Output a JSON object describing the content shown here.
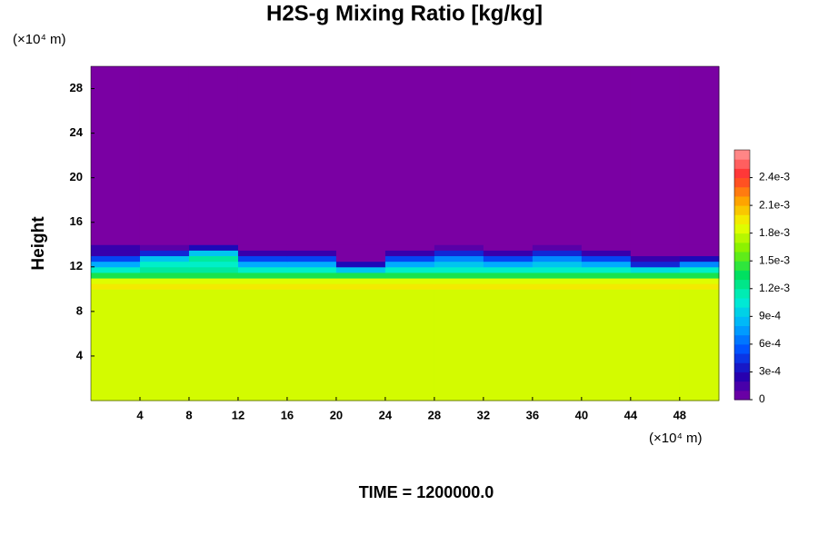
{
  "chart_data": {
    "type": "contour",
    "title": "H2S-g Mixing Ratio [kg/kg]",
    "y_label": "Height",
    "y_unit": "(×10⁴ m)",
    "x_unit": "(×10⁴ m)",
    "footer": "TIME = 1200000.0",
    "xlim": [
      0,
      51.2
    ],
    "ylim": [
      0,
      30
    ],
    "xticks": [
      4,
      8,
      12,
      16,
      20,
      24,
      28,
      32,
      36,
      40,
      44,
      48
    ],
    "yticks": [
      4,
      8,
      12,
      16,
      20,
      24,
      28
    ],
    "x_edges": [
      0,
      4,
      8,
      12,
      16,
      20,
      24,
      28,
      32,
      36,
      40,
      44,
      48,
      51.2
    ],
    "y_edges": [
      0,
      10,
      10.5,
      11,
      11.5,
      12,
      12.5,
      13,
      13.5,
      14,
      30
    ],
    "z": [
      [
        0.00182,
        0.00182,
        0.00182,
        0.00182,
        0.00182,
        0.00182,
        0.00182,
        0.00182,
        0.00182,
        0.00182,
        0.00182,
        0.00182,
        0.00182
      ],
      [
        0.00195,
        0.00195,
        0.00195,
        0.00195,
        0.00195,
        0.00195,
        0.00195,
        0.00195,
        0.00195,
        0.00195,
        0.00195,
        0.00195,
        0.00195
      ],
      [
        0.00185,
        0.00185,
        0.00185,
        0.00185,
        0.00185,
        0.00185,
        0.00185,
        0.00185,
        0.00185,
        0.00185,
        0.00185,
        0.00185,
        0.00185
      ],
      [
        0.0014,
        0.0014,
        0.0014,
        0.0014,
        0.0014,
        0.0014,
        0.0014,
        0.0014,
        0.0014,
        0.0014,
        0.0014,
        0.0014,
        0.0014
      ],
      [
        0.0011,
        0.0012,
        0.0012,
        0.0011,
        0.0011,
        0.0009,
        0.0011,
        0.0011,
        0.0011,
        0.0011,
        0.0011,
        0.001,
        0.0011
      ],
      [
        0.0008,
        0.0011,
        0.0011,
        0.0008,
        0.0008,
        0.0003,
        0.0008,
        0.0009,
        0.0008,
        0.0009,
        0.0008,
        0.0004,
        0.0007
      ],
      [
        0.0005,
        0.0009,
        0.0012,
        0.0005,
        0.0005,
        0,
        0.0005,
        0.0007,
        0.0005,
        0.0007,
        0.0005,
        0.0002,
        0.0003
      ],
      [
        0.0002,
        0.0004,
        0.0009,
        0.0002,
        0.0002,
        0,
        0.0002,
        0.0004,
        0.0002,
        0.0004,
        0.0002,
        0,
        0
      ],
      [
        0.0002,
        0.0001,
        0.0003,
        0,
        0,
        0,
        0,
        0.0001,
        0,
        0.0001,
        0,
        0,
        0
      ],
      [
        0,
        0,
        0,
        0,
        0,
        0,
        0,
        0,
        0,
        0,
        0,
        0,
        0
      ]
    ],
    "clim": [
      0,
      0.0027
    ],
    "colormap": [
      "#7a00a3",
      "#2000b0",
      "#0050ff",
      "#00b0ff",
      "#00f0d0",
      "#00e060",
      "#80f000",
      "#f0ff00",
      "#ffa000",
      "#ff3030",
      "#ff9a9a"
    ],
    "cticks": [
      {
        "value": 0,
        "label": "0"
      },
      {
        "value": 0.0003,
        "label": "3e-4"
      },
      {
        "value": 0.0006,
        "label": "6e-4"
      },
      {
        "value": 0.0009,
        "label": "9e-4"
      },
      {
        "value": 0.0012,
        "label": "1.2e-3"
      },
      {
        "value": 0.0015,
        "label": "1.5e-3"
      },
      {
        "value": 0.0018,
        "label": "1.8e-3"
      },
      {
        "value": 0.0021,
        "label": "2.1e-3"
      },
      {
        "value": 0.0024,
        "label": "2.4e-3"
      }
    ]
  }
}
